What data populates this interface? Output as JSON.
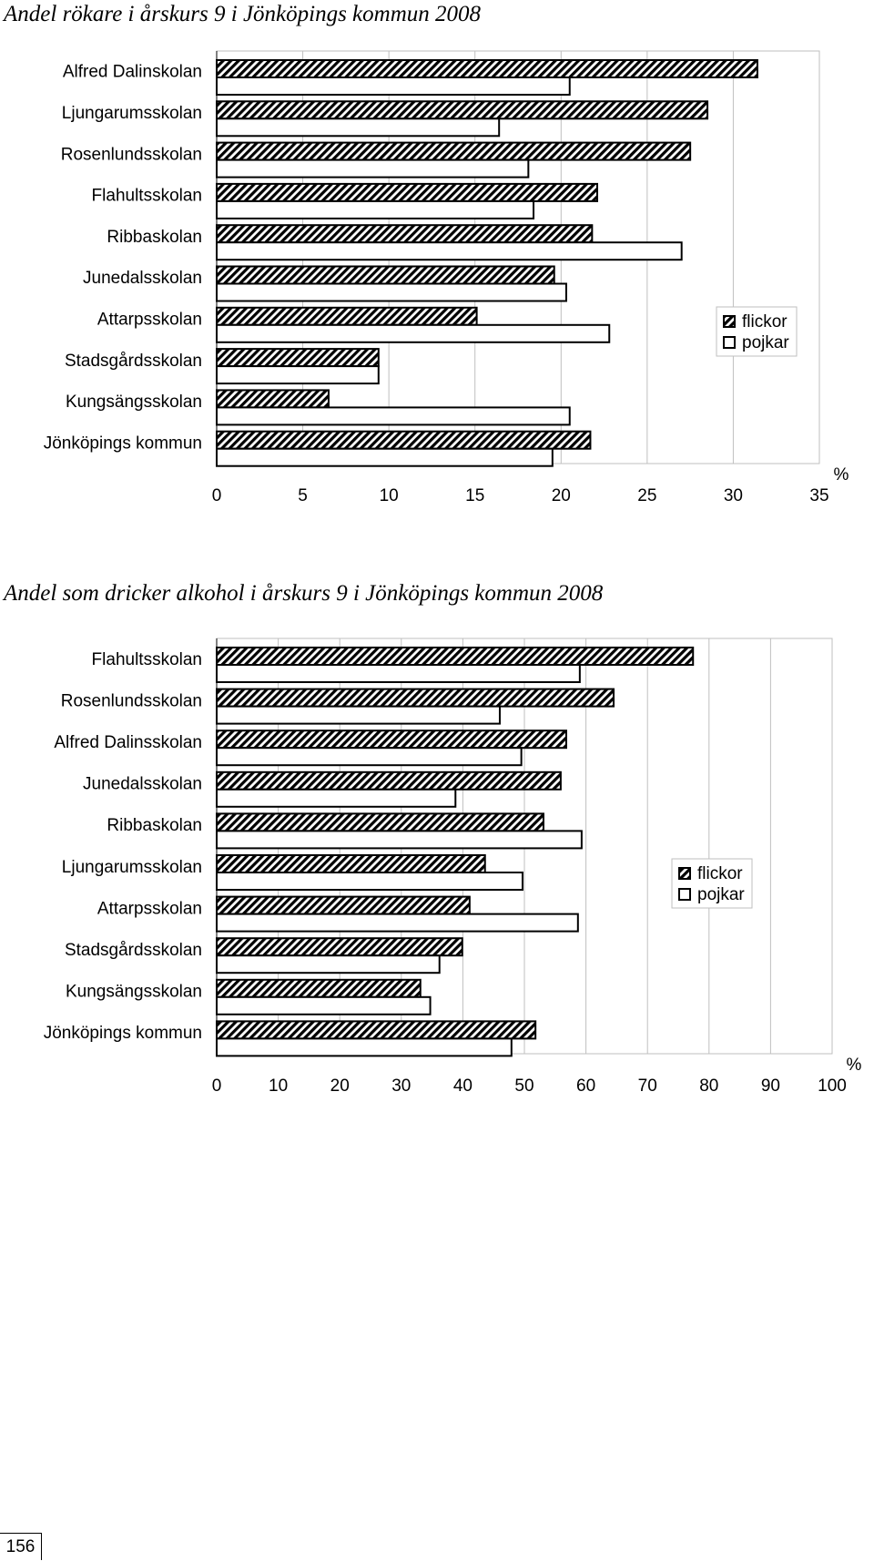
{
  "page_number": "156",
  "legend": {
    "girls": "flickor",
    "boys": "pojkar"
  },
  "unit": "%",
  "chart_data": [
    {
      "type": "bar",
      "orientation": "horizontal",
      "title": "Andel rökare i årskurs 9 i Jönköpings kommun 2008",
      "categories": [
        "Alfred Dalinskolan",
        "Ljungarumsskolan",
        "Rosenlundsskolan",
        "Flahultsskolan",
        "Ribbaskolan",
        "Junedalsskolan",
        "Attarpsskolan",
        "Stadsgårdsskolan",
        "Kungsängsskolan",
        "Jönköpings kommun"
      ],
      "series": [
        {
          "name": "flickor",
          "values": [
            31.4,
            28.5,
            27.5,
            22.1,
            21.8,
            19.6,
            15.1,
            9.4,
            6.5,
            21.7
          ]
        },
        {
          "name": "pojkar",
          "values": [
            20.5,
            16.4,
            18.1,
            18.4,
            27.0,
            20.3,
            22.8,
            9.4,
            20.5,
            19.5
          ]
        }
      ],
      "xlim": [
        0,
        35
      ],
      "xticks": [
        "0",
        "5",
        "10",
        "15",
        "20",
        "25",
        "30",
        "35"
      ],
      "xlabel": "%",
      "grid": true,
      "legend_position": "right"
    },
    {
      "type": "bar",
      "orientation": "horizontal",
      "title": "Andel som dricker alkohol i årskurs 9 i Jönköpings kommun 2008",
      "categories": [
        "Flahultsskolan",
        "Rosenlundsskolan",
        "Alfred Dalinsskolan",
        "Junedalsskolan",
        "Ribbaskolan",
        "Ljungarumsskolan",
        "Attarpsskolan",
        "Stadsgårdsskolan",
        "Kungsängsskolan",
        "Jönköpings kommun"
      ],
      "series": [
        {
          "name": "flickor",
          "values": [
            77.4,
            64.5,
            56.8,
            55.9,
            53.1,
            43.6,
            41.1,
            39.9,
            33.1,
            51.8
          ]
        },
        {
          "name": "pojkar",
          "values": [
            59.0,
            46.0,
            49.5,
            38.8,
            59.3,
            49.7,
            58.7,
            36.2,
            34.7,
            47.9
          ]
        }
      ],
      "xlim": [
        0,
        100
      ],
      "xticks": [
        "0",
        "10",
        "20",
        "30",
        "40",
        "50",
        "60",
        "70",
        "80",
        "90",
        "100"
      ],
      "xlabel": "%",
      "grid": true,
      "legend_position": "right"
    }
  ]
}
